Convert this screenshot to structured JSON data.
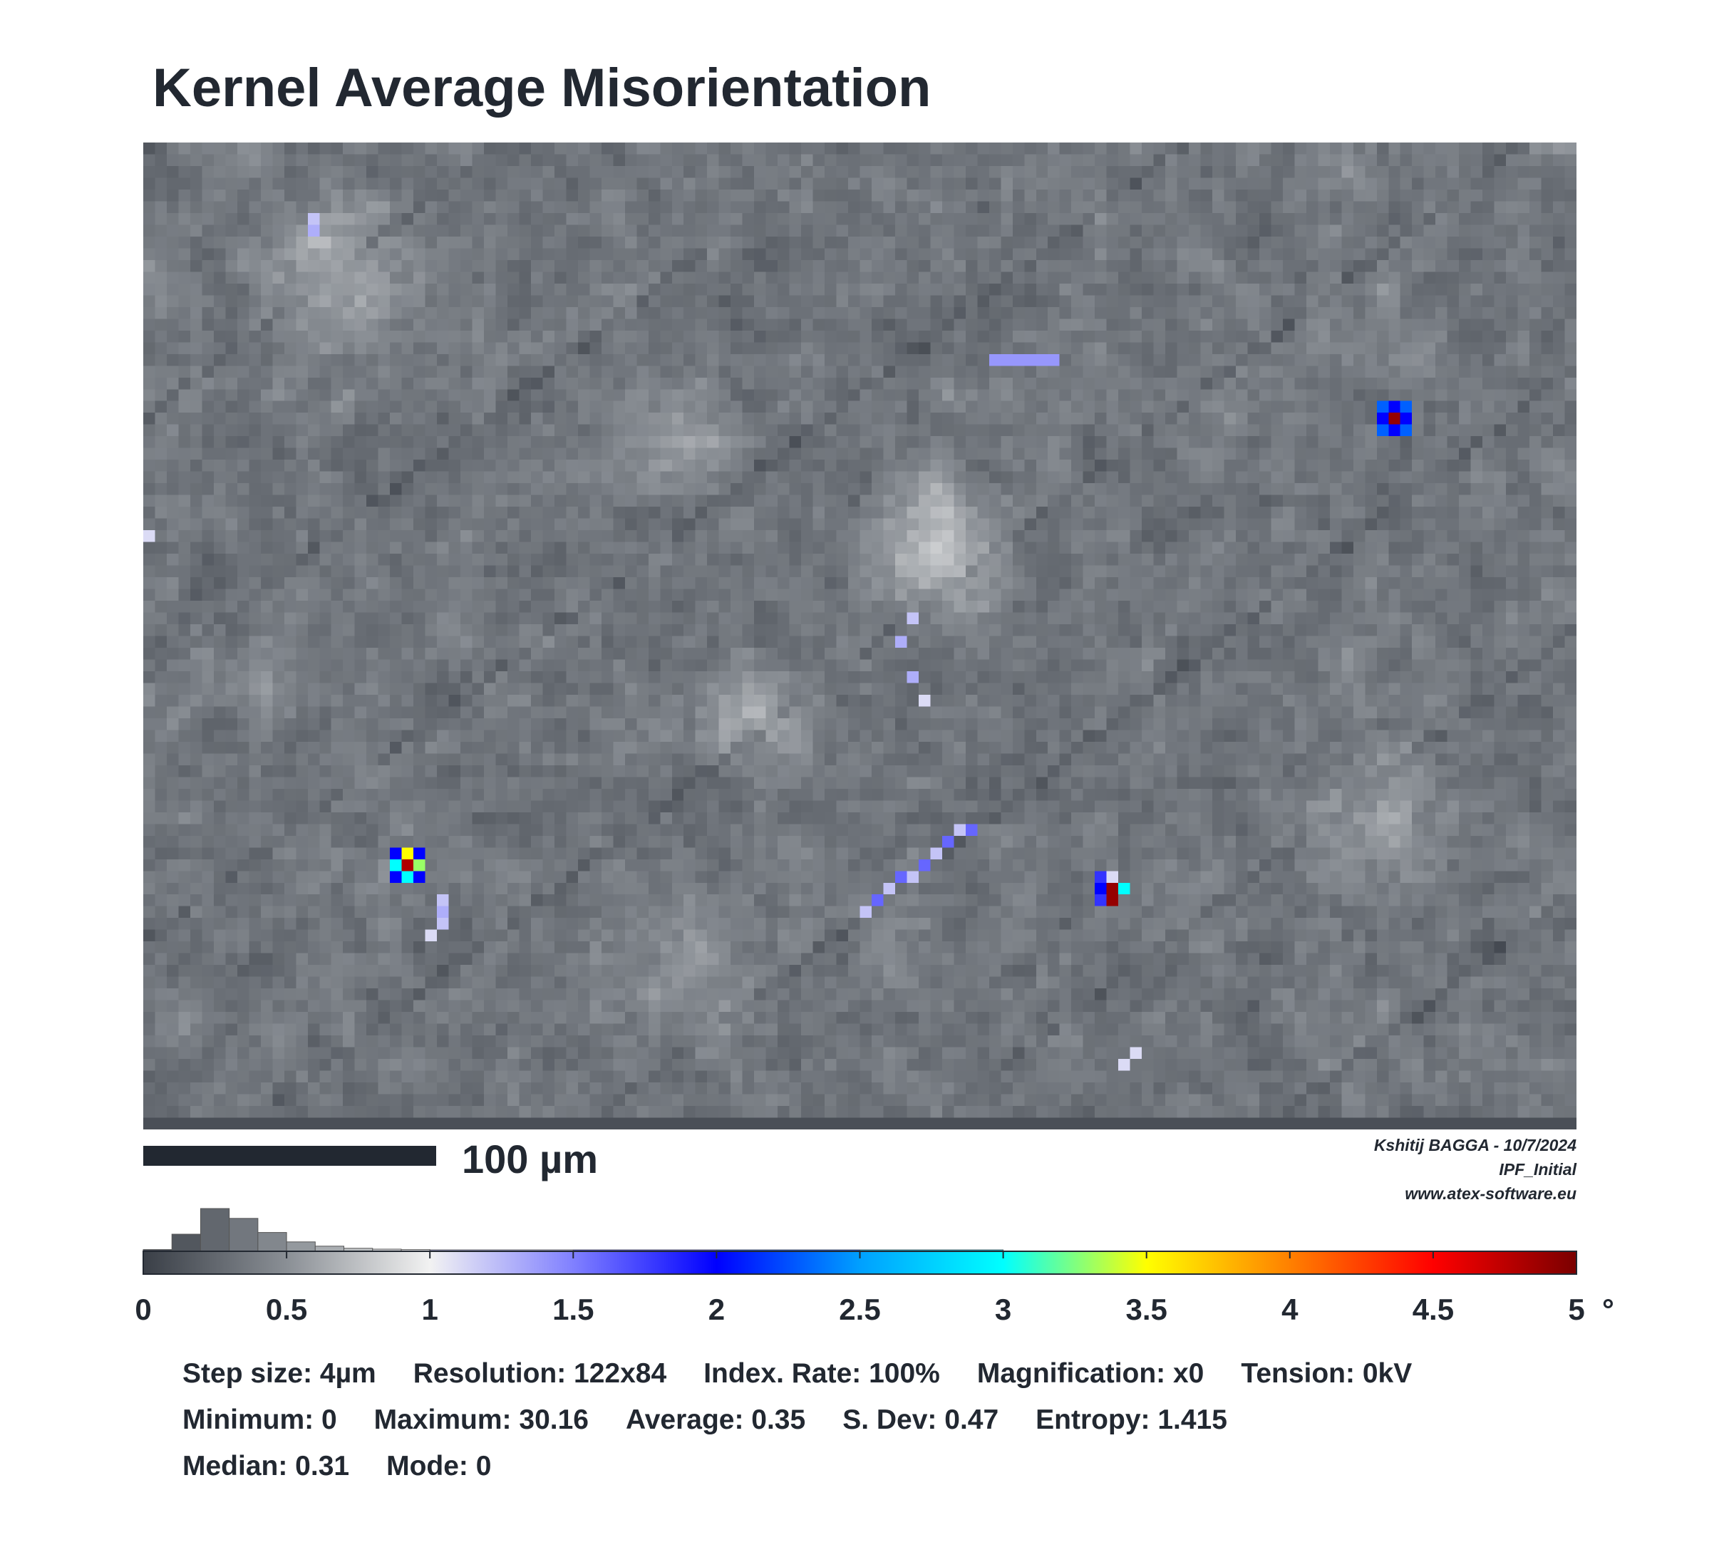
{
  "title": "Kernel Average Misorientation",
  "scale_bar": {
    "label": "100 µm"
  },
  "credits": {
    "line1": "Kshitij BAGGA - 10/7/2024",
    "line2": "IPF_Initial",
    "line3": "www.atex-software.eu"
  },
  "colors": {
    "text": "#222831",
    "colormap": [
      "#3a3f47",
      "#8a8f95",
      "#f2f2f2",
      "#8080ff",
      "#0000ff",
      "#00a0ff",
      "#00ffff",
      "#ffff00",
      "#ff8000",
      "#ff0000",
      "#7a0000"
    ]
  },
  "chart_data": {
    "type": "heatmap",
    "title": "Kernel Average Misorientation",
    "grid": {
      "columns": 122,
      "rows": 84
    },
    "color_scale": {
      "min": 0,
      "max": 5,
      "unit": "°",
      "ticks": [
        "0",
        "0.5",
        "1",
        "1.5",
        "2",
        "2.5",
        "3",
        "3.5",
        "4",
        "4.5",
        "5"
      ],
      "tick_values": [
        0,
        0.5,
        1,
        1.5,
        2,
        2.5,
        3,
        3.5,
        4,
        4.5,
        5
      ]
    },
    "histogram": {
      "bin_starts": [
        0,
        0.1,
        0.2,
        0.3,
        0.4,
        0.5,
        0.6,
        0.7,
        0.8,
        0.9,
        1.0,
        1.5,
        2.0,
        2.5
      ],
      "bin_ends": [
        0.1,
        0.2,
        0.3,
        0.4,
        0.5,
        0.6,
        0.7,
        0.8,
        0.9,
        1.0,
        1.5,
        2.0,
        2.5,
        3.0
      ],
      "relative_frequency": [
        0.04,
        0.4,
        1.0,
        0.77,
        0.44,
        0.22,
        0.12,
        0.07,
        0.05,
        0.04,
        0.03,
        0.02,
        0.01,
        0.01
      ]
    },
    "highlights": [
      {
        "name": "top-left blue",
        "col": 14,
        "row": 7,
        "value": 1.3
      },
      {
        "name": "top bar",
        "cols": [
          75,
          76,
          77,
          78
        ],
        "row": 18,
        "value": 1.4
      },
      {
        "name": "right cross",
        "col": 105,
        "row": 23,
        "value": 2.3
      },
      {
        "name": "left speck",
        "col": 22,
        "row": 61,
        "value": 4.8
      },
      {
        "name": "lower diagonal",
        "col": 65,
        "row": 64,
        "value": 1.6
      },
      {
        "name": "lower right speck",
        "col": 81,
        "row": 64,
        "value": 4.9
      }
    ]
  },
  "stats": {
    "rows": [
      [
        "Step size: 4µm",
        "Resolution: 122x84",
        "Index. Rate: 100%",
        "Magnification: x0",
        "Tension: 0kV"
      ],
      [
        "Minimum: 0",
        "Maximum: 30.16",
        "Average: 0.35",
        "S. Dev: 0.47",
        "Entropy: 1.415"
      ],
      [
        "Median: 0.31",
        "Mode: 0"
      ]
    ]
  }
}
